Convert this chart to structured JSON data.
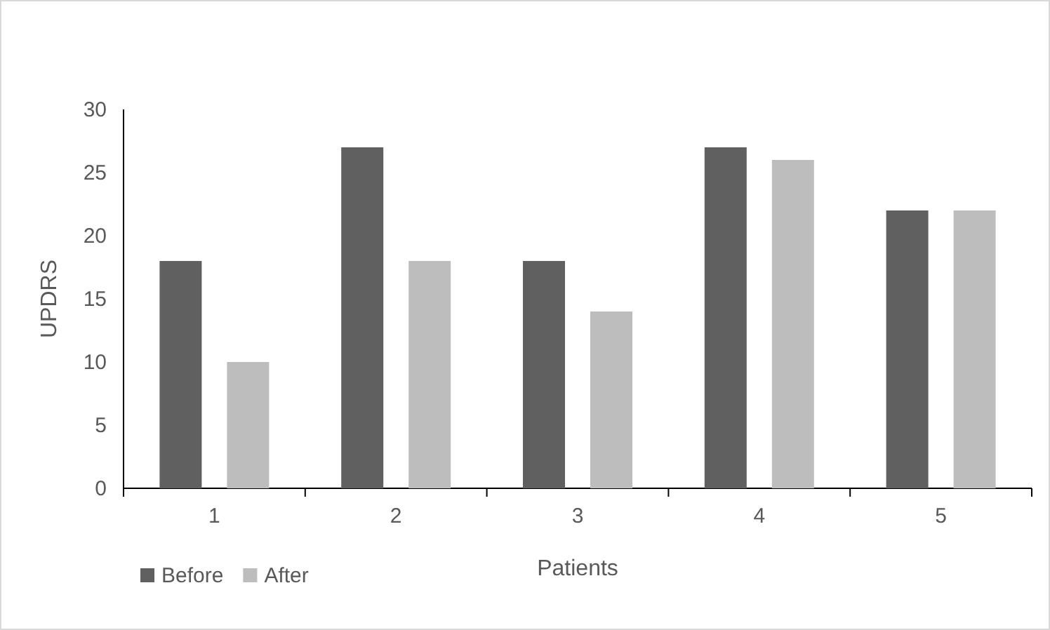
{
  "chart_data": {
    "type": "bar",
    "xlabel": "Patients",
    "ylabel": "UPDRS",
    "categories": [
      "1",
      "2",
      "3",
      "4",
      "5"
    ],
    "series": [
      {
        "name": "Before",
        "color": "#606060",
        "values": [
          18,
          27,
          18,
          27,
          22
        ]
      },
      {
        "name": "After",
        "color": "#bdbdbd",
        "values": [
          10,
          18,
          14,
          26,
          22
        ]
      }
    ],
    "ylim": [
      0,
      30
    ],
    "yticks": [
      0,
      5,
      10,
      15,
      20,
      25,
      30
    ],
    "grid": false,
    "legend": "bottom left"
  }
}
